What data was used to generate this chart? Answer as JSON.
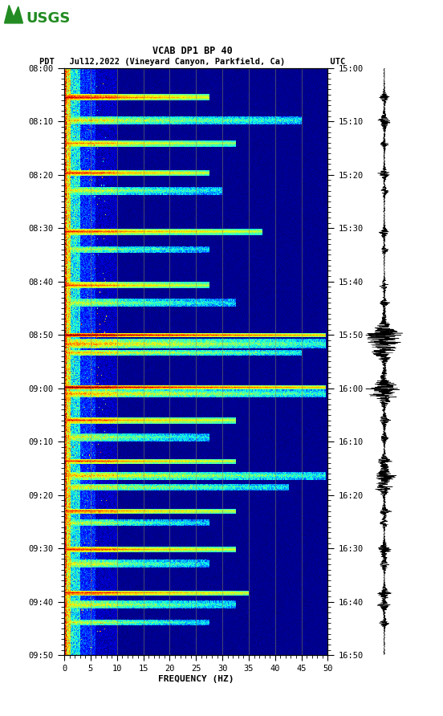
{
  "title_line1": "VCAB DP1 BP 40",
  "title_line2_pdt": "PDT   Jul12,2022 (Vineyard Canyon, Parkfield, Ca)         UTC",
  "xlabel": "FREQUENCY (HZ)",
  "freq_min": 0,
  "freq_max": 50,
  "freq_ticks": [
    0,
    5,
    10,
    15,
    20,
    25,
    30,
    35,
    40,
    45,
    50
  ],
  "time_labels_left": [
    "08:00",
    "08:10",
    "08:20",
    "08:30",
    "08:40",
    "08:50",
    "09:00",
    "09:10",
    "09:20",
    "09:30",
    "09:40",
    "09:50"
  ],
  "time_labels_right": [
    "15:00",
    "15:10",
    "15:20",
    "15:30",
    "15:40",
    "15:50",
    "16:00",
    "16:10",
    "16:20",
    "16:30",
    "16:40",
    "16:50"
  ],
  "n_time_steps": 660,
  "n_freq_steps": 500,
  "bg_color": "white",
  "spectrogram_colormap": "jet",
  "vertical_lines_freq": [
    5,
    10,
    15,
    20,
    25,
    30,
    35,
    40,
    45
  ],
  "vertical_line_color": "#888855",
  "vertical_line_alpha": 0.6,
  "seed": 12345
}
